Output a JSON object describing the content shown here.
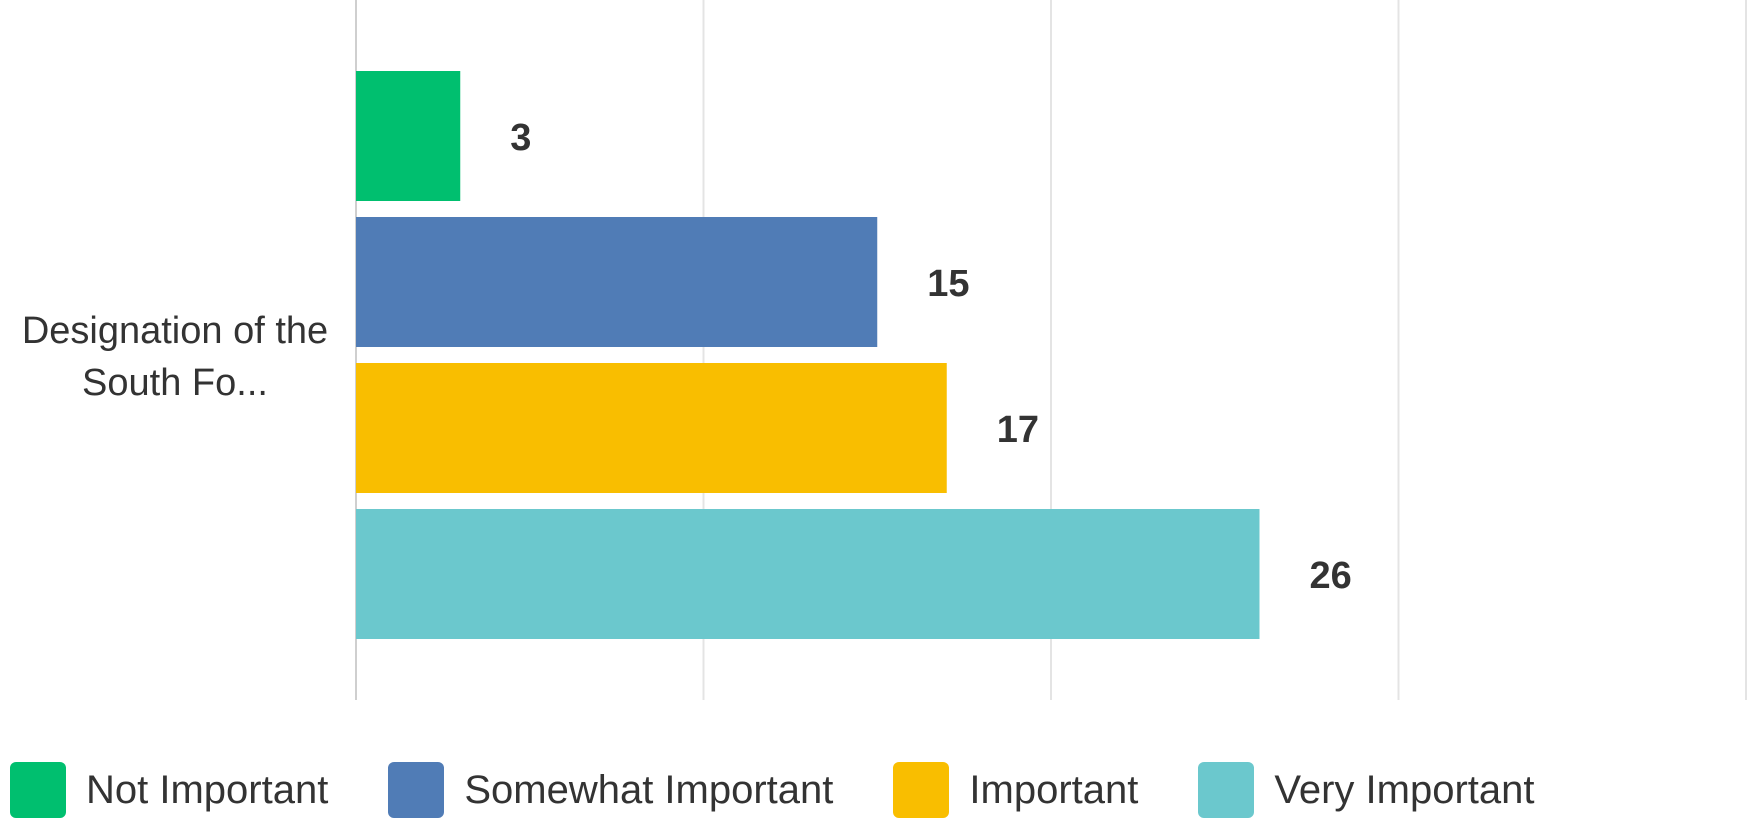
{
  "chart_data": {
    "type": "bar",
    "orientation": "horizontal",
    "categories": [
      "Designation of the South Fo..."
    ],
    "series": [
      {
        "name": "Not Important",
        "values": [
          3
        ],
        "color": "#00BF6F"
      },
      {
        "name": "Somewhat Important",
        "values": [
          15
        ],
        "color": "#507CB6"
      },
      {
        "name": "Important",
        "values": [
          17
        ],
        "color": "#F9BE00"
      },
      {
        "name": "Very Important",
        "values": [
          26
        ],
        "color": "#6BC8CD"
      }
    ],
    "xlim": [
      0,
      40
    ],
    "grid": true,
    "legend": "bottom",
    "data_labels": true
  }
}
